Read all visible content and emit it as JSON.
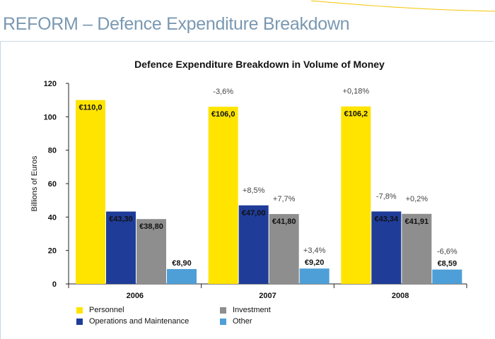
{
  "slide": {
    "title": "REFORM – Defence Expenditure Breakdown"
  },
  "colors": {
    "personnel": "#ffe400",
    "om": "#1f3c99",
    "investment": "#8e8e8e",
    "other": "#4e9fd8",
    "title_blue": "#7a98b2",
    "accent_line": "#f5c400"
  },
  "chart_data": {
    "type": "bar",
    "title": "Defence Expenditure Breakdown in Volume of Money",
    "xlabel": "",
    "ylabel": "Billions of Euros",
    "ylim": [
      0,
      120
    ],
    "yticks": [
      0,
      20,
      40,
      60,
      80,
      100,
      120
    ],
    "grid": false,
    "legend_position": "bottom",
    "categories": [
      "2006",
      "2007",
      "2008"
    ],
    "series": [
      {
        "name": "Personnel",
        "color": "#ffe400",
        "values": [
          110.0,
          106.0,
          106.2
        ],
        "labels": [
          "€110,0",
          "€106,0",
          "€106,2"
        ],
        "changes": [
          "",
          "-3,6%",
          "+0,18%"
        ]
      },
      {
        "name": "Operations and Maintenance",
        "color": "#1f3c99",
        "values": [
          43.3,
          47.0,
          43.34
        ],
        "labels": [
          "€43,30",
          "€47,00",
          "€43,34"
        ],
        "changes": [
          "",
          "+8,5%",
          "-7,8%"
        ]
      },
      {
        "name": "Investment",
        "color": "#8e8e8e",
        "values": [
          38.8,
          41.8,
          41.91
        ],
        "labels": [
          "€38,80",
          "€41,80",
          "€41,91"
        ],
        "changes": [
          "",
          "+7,7%",
          "+0,2%"
        ]
      },
      {
        "name": "Other",
        "color": "#4e9fd8",
        "values": [
          8.9,
          9.2,
          8.59
        ],
        "labels": [
          "€8,90",
          "€9,20",
          "€8,59"
        ],
        "changes": [
          "",
          "+3,4%",
          "-6,6%"
        ]
      }
    ]
  }
}
